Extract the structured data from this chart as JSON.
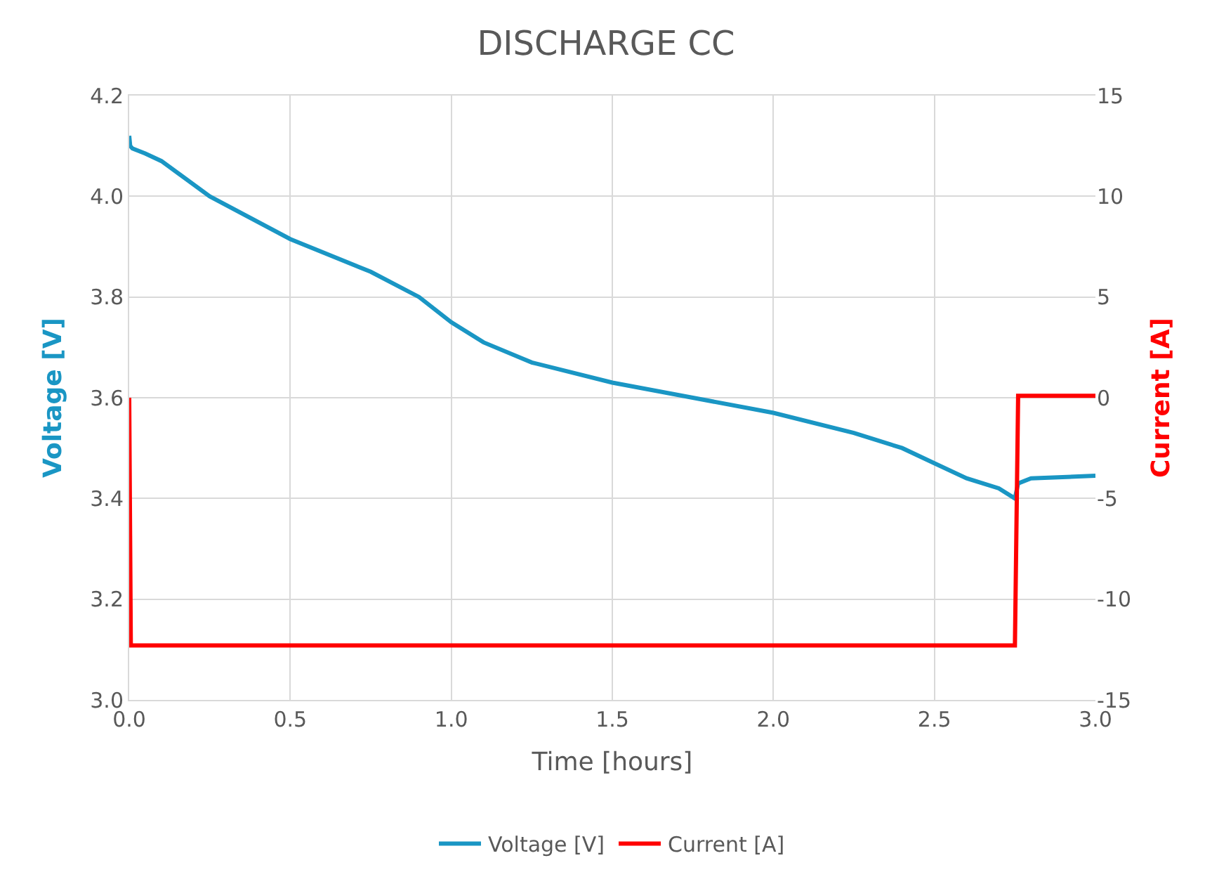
{
  "chart_data": {
    "type": "line",
    "title": "DISCHARGE CC",
    "xlabel": "Time [hours]",
    "ylabel": "Voltage [V]",
    "y2label": "Current [A]",
    "xlim": [
      0,
      3
    ],
    "xticks": [
      {
        "value": 0,
        "label": "0.0"
      },
      {
        "value": 0.5,
        "label": "0.5"
      },
      {
        "value": 1,
        "label": "1.0"
      },
      {
        "value": 1.5,
        "label": "1.5"
      },
      {
        "value": 2,
        "label": "2.0"
      },
      {
        "value": 2.5,
        "label": "2.5"
      },
      {
        "value": 3,
        "label": "3.0"
      }
    ],
    "ylim": [
      3.0,
      4.2
    ],
    "yticks": [
      {
        "value": 3.0,
        "label": "3.0"
      },
      {
        "value": 3.2,
        "label": "3.2"
      },
      {
        "value": 3.4,
        "label": "3.4"
      },
      {
        "value": 3.6,
        "label": "3.6"
      },
      {
        "value": 3.8,
        "label": "3.8"
      },
      {
        "value": 4.0,
        "label": "4.0"
      },
      {
        "value": 4.2,
        "label": "4.2"
      }
    ],
    "y2lim": [
      -15,
      15
    ],
    "y2ticks": [
      -15,
      -10,
      -5,
      0,
      5,
      10,
      15
    ],
    "grid": true,
    "legend": "bottom",
    "marker": "none",
    "line_style": "solid",
    "series": [
      {
        "name": "Voltage [V]",
        "color": "#1a96c4",
        "x": [
          0,
          0.003,
          0.01,
          0.05,
          0.1,
          0.25,
          0.5,
          0.75,
          0.9,
          1.0,
          1.1,
          1.25,
          1.5,
          1.75,
          2.0,
          2.25,
          2.4,
          2.5,
          2.6,
          2.7,
          2.75,
          2.76,
          2.8,
          3.0
        ],
        "values": [
          4.12,
          4.1,
          4.095,
          4.085,
          4.07,
          4.0,
          3.915,
          3.85,
          3.8,
          3.75,
          3.71,
          3.67,
          3.63,
          3.6,
          3.57,
          3.53,
          3.5,
          3.47,
          3.44,
          3.42,
          3.4,
          3.43,
          3.44,
          3.445
        ]
      },
      {
        "name": "Current [A]",
        "color": "#ff0000",
        "axis": "y2",
        "x": [
          0,
          0.005,
          0.01,
          1.0,
          2.0,
          2.75,
          2.76,
          3.0
        ],
        "values": [
          0,
          -12.3,
          -12.3,
          -12.3,
          -12.3,
          -12.3,
          0.1,
          0.1
        ]
      }
    ]
  }
}
